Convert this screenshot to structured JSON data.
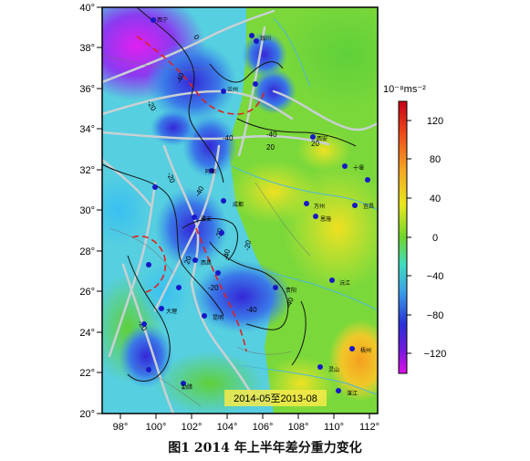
{
  "map": {
    "period_label": "2014-05至2013-08",
    "lon_ticks": [
      "98°",
      "100°",
      "102°",
      "104°",
      "106°",
      "108°",
      "110°",
      "112°"
    ],
    "lat_ticks": [
      "40°",
      "38°",
      "36°",
      "34°",
      "32°",
      "30°",
      "28°",
      "26°",
      "24°",
      "22°",
      "20°"
    ],
    "colorbar": {
      "unit": "10⁻⁸ms⁻²",
      "ticks": [
        "120",
        "80",
        "40",
        "0",
        "−40",
        "−80",
        "−120"
      ],
      "colors": [
        "#d0021b",
        "#f2561d",
        "#f5a623",
        "#f8e71c",
        "#7ed321",
        "#50e3c2",
        "#4a90e2",
        "#3a2ad8",
        "#bd10e0"
      ]
    },
    "contour_labels": [
      "0",
      "-40",
      "-20",
      "-40",
      "20",
      "20",
      "-40",
      "-20",
      "-40",
      "-20",
      "-40",
      "-20",
      "20",
      "-20",
      "-40",
      "-40",
      "-20"
    ],
    "cities": [
      {
        "name": "银川"
      },
      {
        "name": "兰州"
      },
      {
        "name": "西安"
      },
      {
        "name": "十堰"
      },
      {
        "name": "西宁"
      },
      {
        "name": "阿坝"
      },
      {
        "name": "成都"
      },
      {
        "name": "万州"
      },
      {
        "name": "宜昌"
      },
      {
        "name": "恩施"
      },
      {
        "name": "雅安"
      },
      {
        "name": "西昌"
      },
      {
        "name": "贵阳"
      },
      {
        "name": "沅江"
      },
      {
        "name": "昆明"
      },
      {
        "name": "大理"
      },
      {
        "name": "梧州"
      },
      {
        "name": "灵山"
      },
      {
        "name": "湛江"
      },
      {
        "name": "勐腊"
      }
    ]
  },
  "caption": "图1  2014 年上半年差分重力变化"
}
